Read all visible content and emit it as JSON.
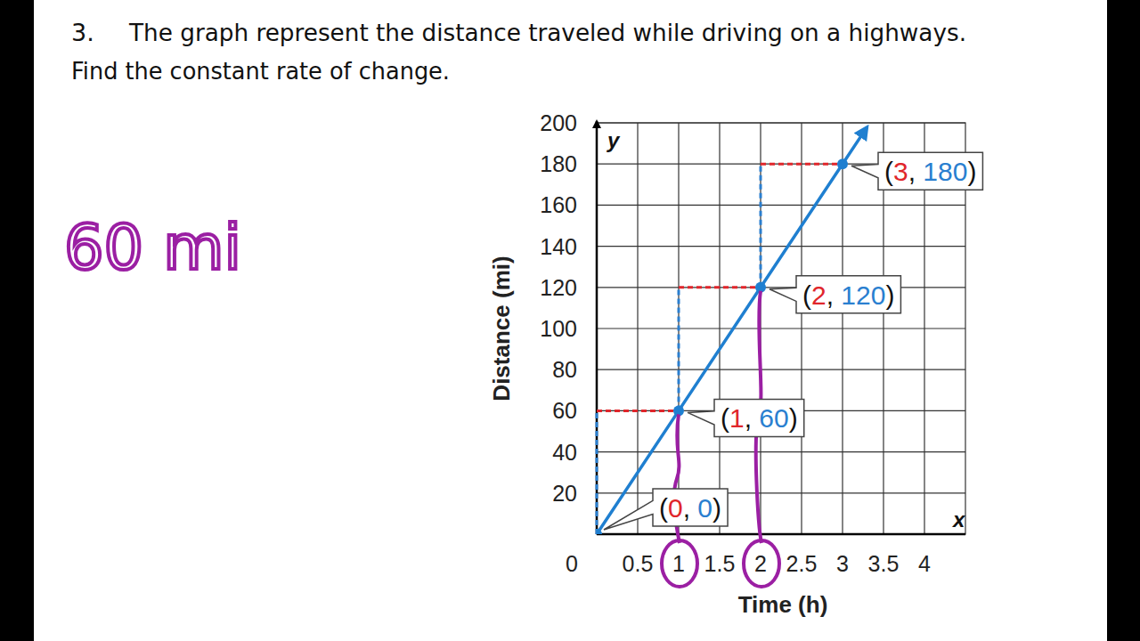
{
  "chart_data": {
    "type": "line",
    "title": "The graph represent the distance traveled while driving on  a highways.",
    "subtitle": "Find the constant rate of change.",
    "annotations": [
      "3.",
      "60 mi"
    ],
    "x_label": "Time (h)",
    "y_label": "Distance (mi)",
    "x_axis_name": "x",
    "y_axis_name": "y",
    "x": [
      0,
      1,
      2,
      3,
      3.3
    ],
    "values": [
      0,
      60,
      120,
      180,
      198
    ],
    "value_labels": [
      "(0, 0)",
      "(1, 60)",
      "(2, 120)",
      "(3, 180)",
      null
    ],
    "data_labels": true,
    "marker": "circle",
    "line_style": "arrow",
    "color": "#1f7fd0",
    "xlim": [
      0,
      4.5
    ],
    "xticks": [
      0.5,
      1,
      1.5,
      2,
      2.5,
      3,
      3.5,
      4
    ],
    "ylim": [
      0,
      200
    ],
    "yticks": [
      0,
      20,
      40,
      60,
      80,
      100,
      120,
      140,
      160,
      180,
      200
    ],
    "grid": true,
    "marked_x": [
      1,
      2
    ]
  }
}
